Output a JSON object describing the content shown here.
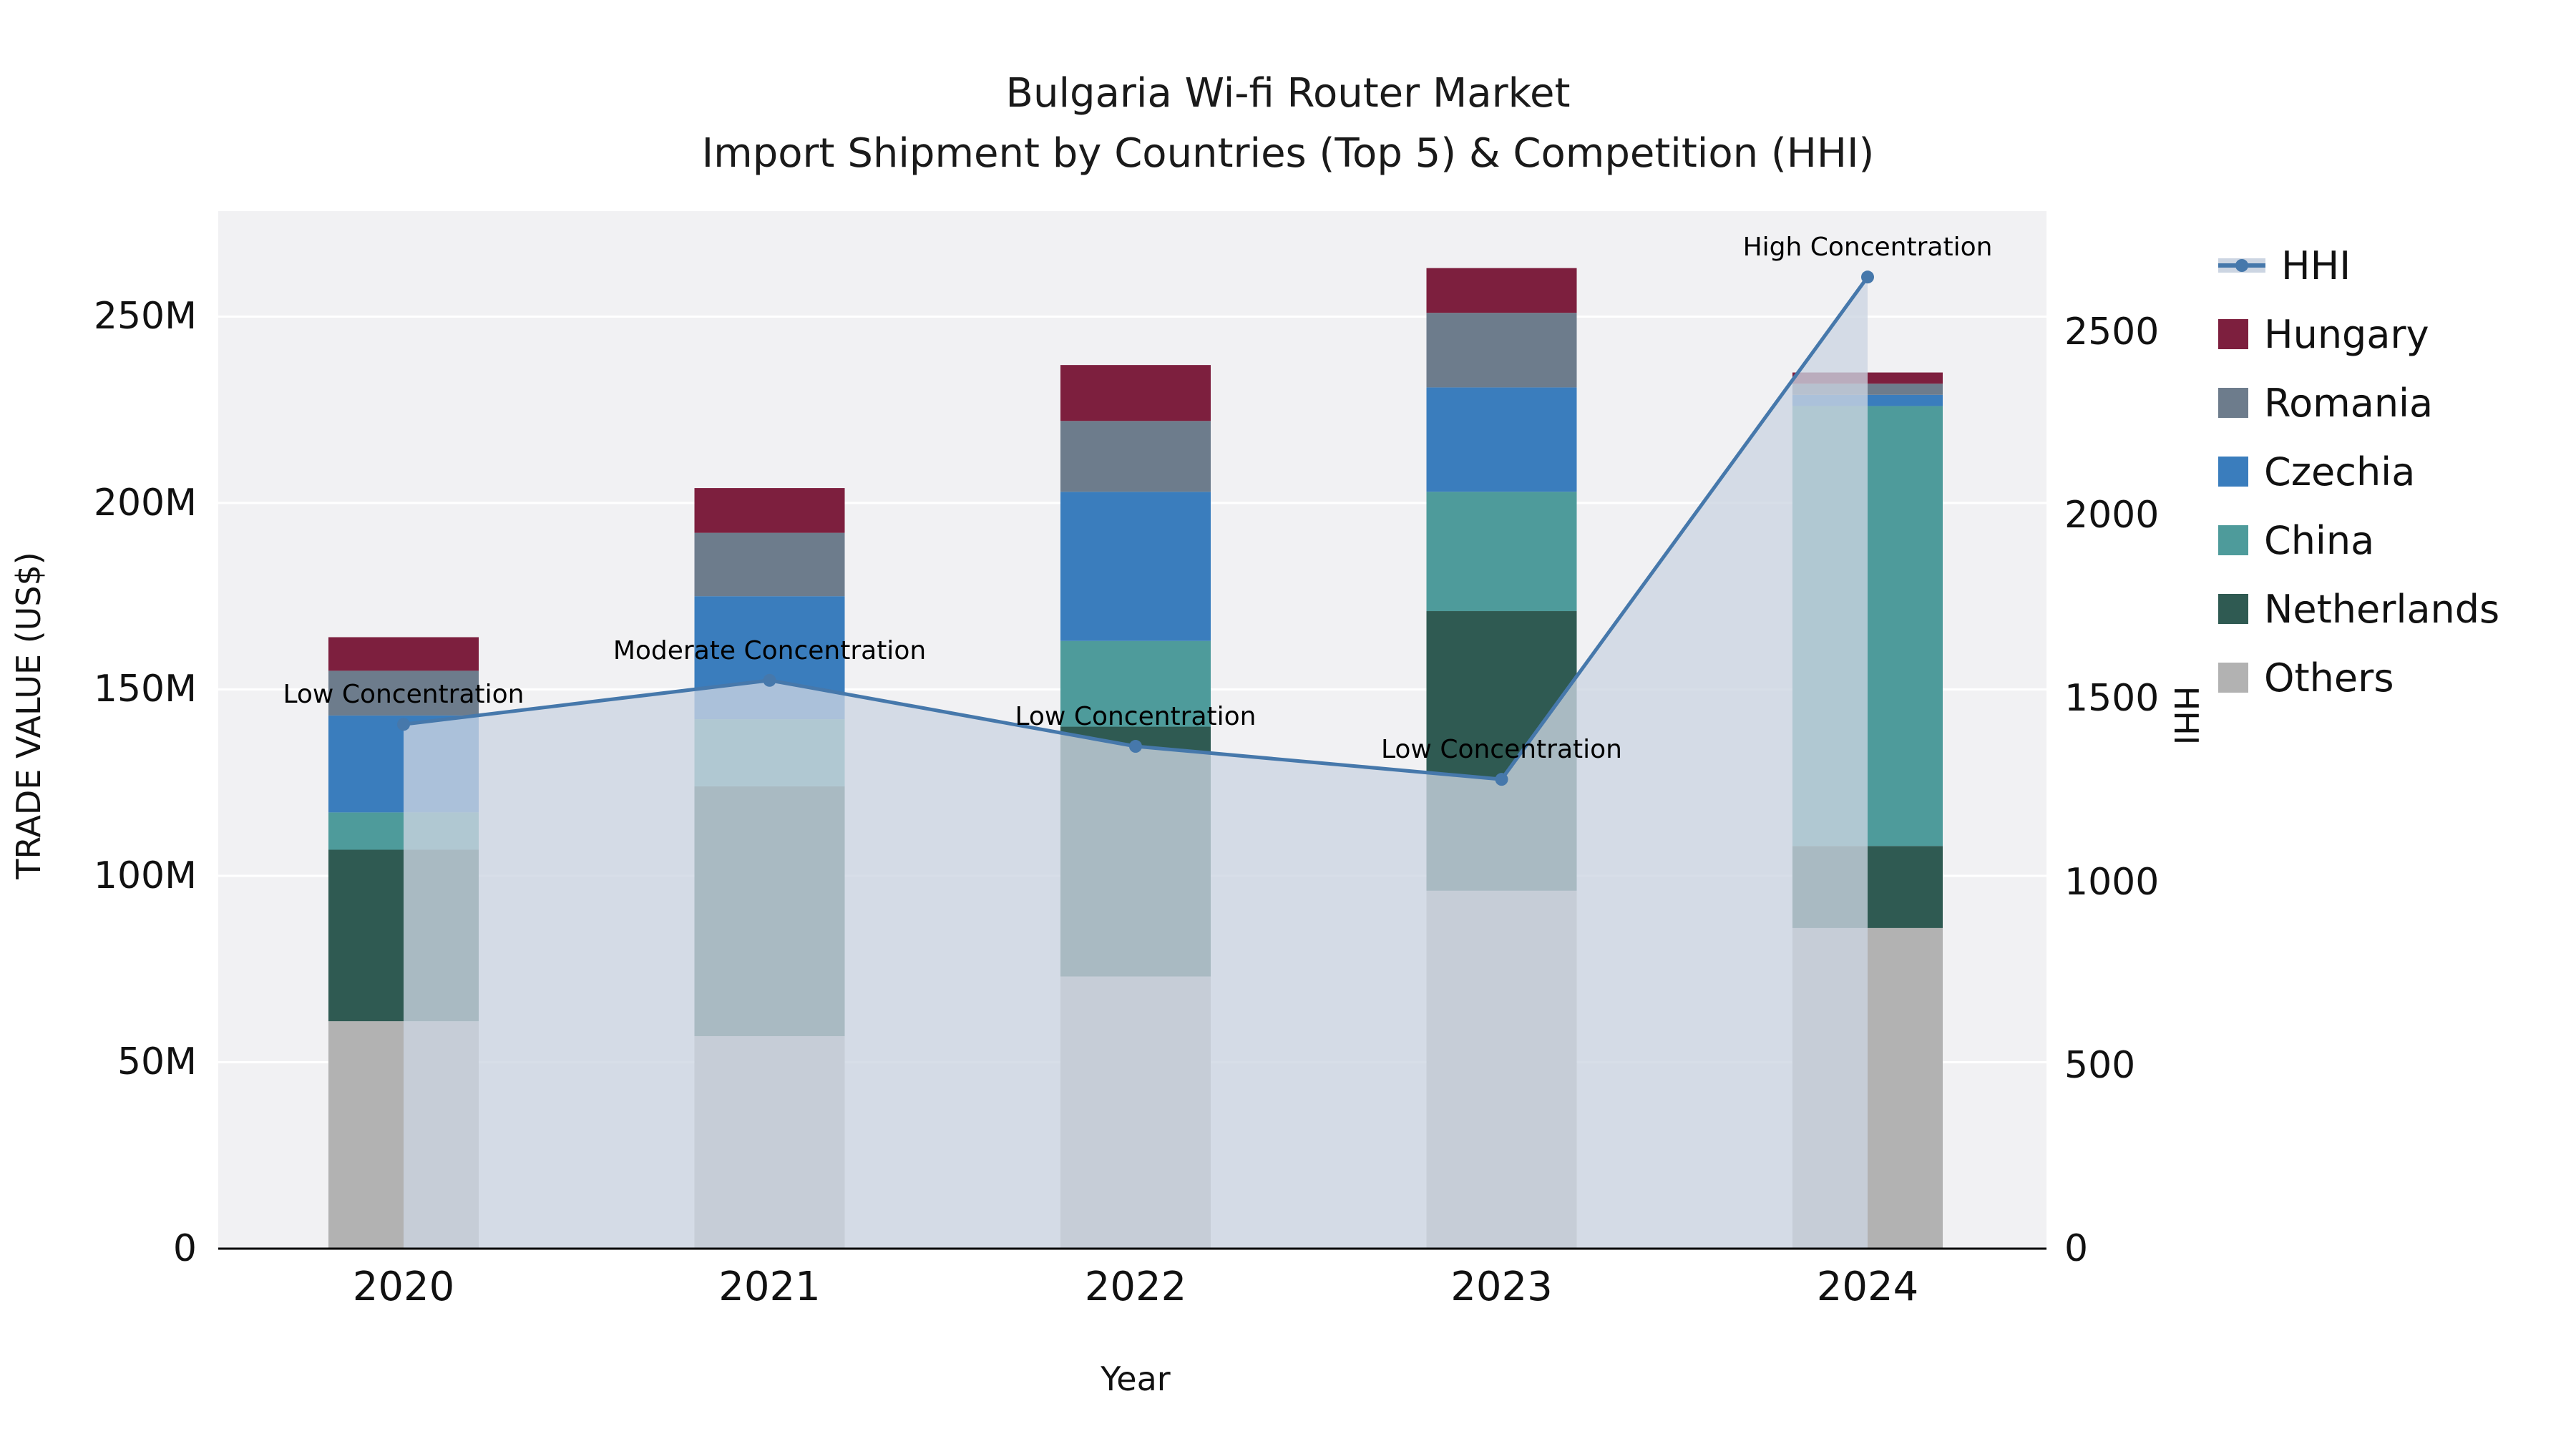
{
  "title": {
    "line1": "Bulgaria Wi-fi Router Market",
    "line2": "Import Shipment by Countries (Top 5) & Competition (HHI)"
  },
  "axes": {
    "x_label": "Year",
    "y_left_label": "TRADE VALUE (US$)",
    "y_right_label": "HHI"
  },
  "legend": {
    "items": [
      {
        "label": "HHI",
        "type": "line",
        "color": "#4678ab"
      },
      {
        "label": "Hungary",
        "type": "swatch",
        "color": "#7d1f3e"
      },
      {
        "label": "Romania",
        "type": "swatch",
        "color": "#6d7c8c"
      },
      {
        "label": "Czechia",
        "type": "swatch",
        "color": "#3a7dbd"
      },
      {
        "label": "China",
        "type": "swatch",
        "color": "#4e9b9b"
      },
      {
        "label": "Netherlands",
        "type": "swatch",
        "color": "#2f5a52"
      },
      {
        "label": "Others",
        "type": "swatch",
        "color": "#b2b2b2"
      }
    ]
  },
  "chart_data": {
    "type": "bar",
    "subtype": "stacked-bar-with-line",
    "title": "Bulgaria Wi-fi Router Market Import Shipment by Countries (Top 5) & Competition (HHI)",
    "xlabel": "Year",
    "ylabel_left": "TRADE VALUE (US$)",
    "ylabel_right": "HHI",
    "categories": [
      "2020",
      "2021",
      "2022",
      "2023",
      "2024"
    ],
    "bar_unit": "Million US$",
    "bar_series": [
      {
        "name": "Others",
        "color": "#b2b2b2",
        "values": [
          61,
          57,
          73,
          96,
          86
        ]
      },
      {
        "name": "Netherlands",
        "color": "#2f5a52",
        "values": [
          46,
          67,
          67,
          75,
          22
        ]
      },
      {
        "name": "China",
        "color": "#4e9b9b",
        "values": [
          10,
          18,
          23,
          32,
          118
        ]
      },
      {
        "name": "Czechia",
        "color": "#3a7dbd",
        "values": [
          26,
          33,
          40,
          28,
          3
        ]
      },
      {
        "name": "Romania",
        "color": "#6d7c8c",
        "values": [
          12,
          17,
          19,
          20,
          3
        ]
      },
      {
        "name": "Hungary",
        "color": "#7d1f3e",
        "values": [
          9,
          12,
          15,
          12,
          3
        ]
      }
    ],
    "bar_totals": [
      164,
      204,
      237,
      263,
      235
    ],
    "line_series": {
      "name": "HHI",
      "color": "#4678ab",
      "fill": "#ccd5e2",
      "values": [
        1430,
        1550,
        1370,
        1280,
        2650
      ]
    },
    "annotations": [
      "Low Concentration",
      "Moderate Concentration",
      "Low Concentration",
      "Low Concentration",
      "High Concentration"
    ],
    "y_left_ticks": [
      "0",
      "50M",
      "100M",
      "150M",
      "200M",
      "250M"
    ],
    "y_left_tick_values": [
      0,
      50,
      100,
      150,
      200,
      250
    ],
    "y_right_ticks": [
      "0",
      "500",
      "1000",
      "1500",
      "2000",
      "2500"
    ],
    "y_right_tick_values": [
      0,
      500,
      1000,
      1500,
      2000,
      2500
    ],
    "ylim_left": [
      0,
      278
    ],
    "ylim_right": [
      0,
      2830
    ],
    "grid": "horizontal-white",
    "legend_position": "right-outside"
  }
}
